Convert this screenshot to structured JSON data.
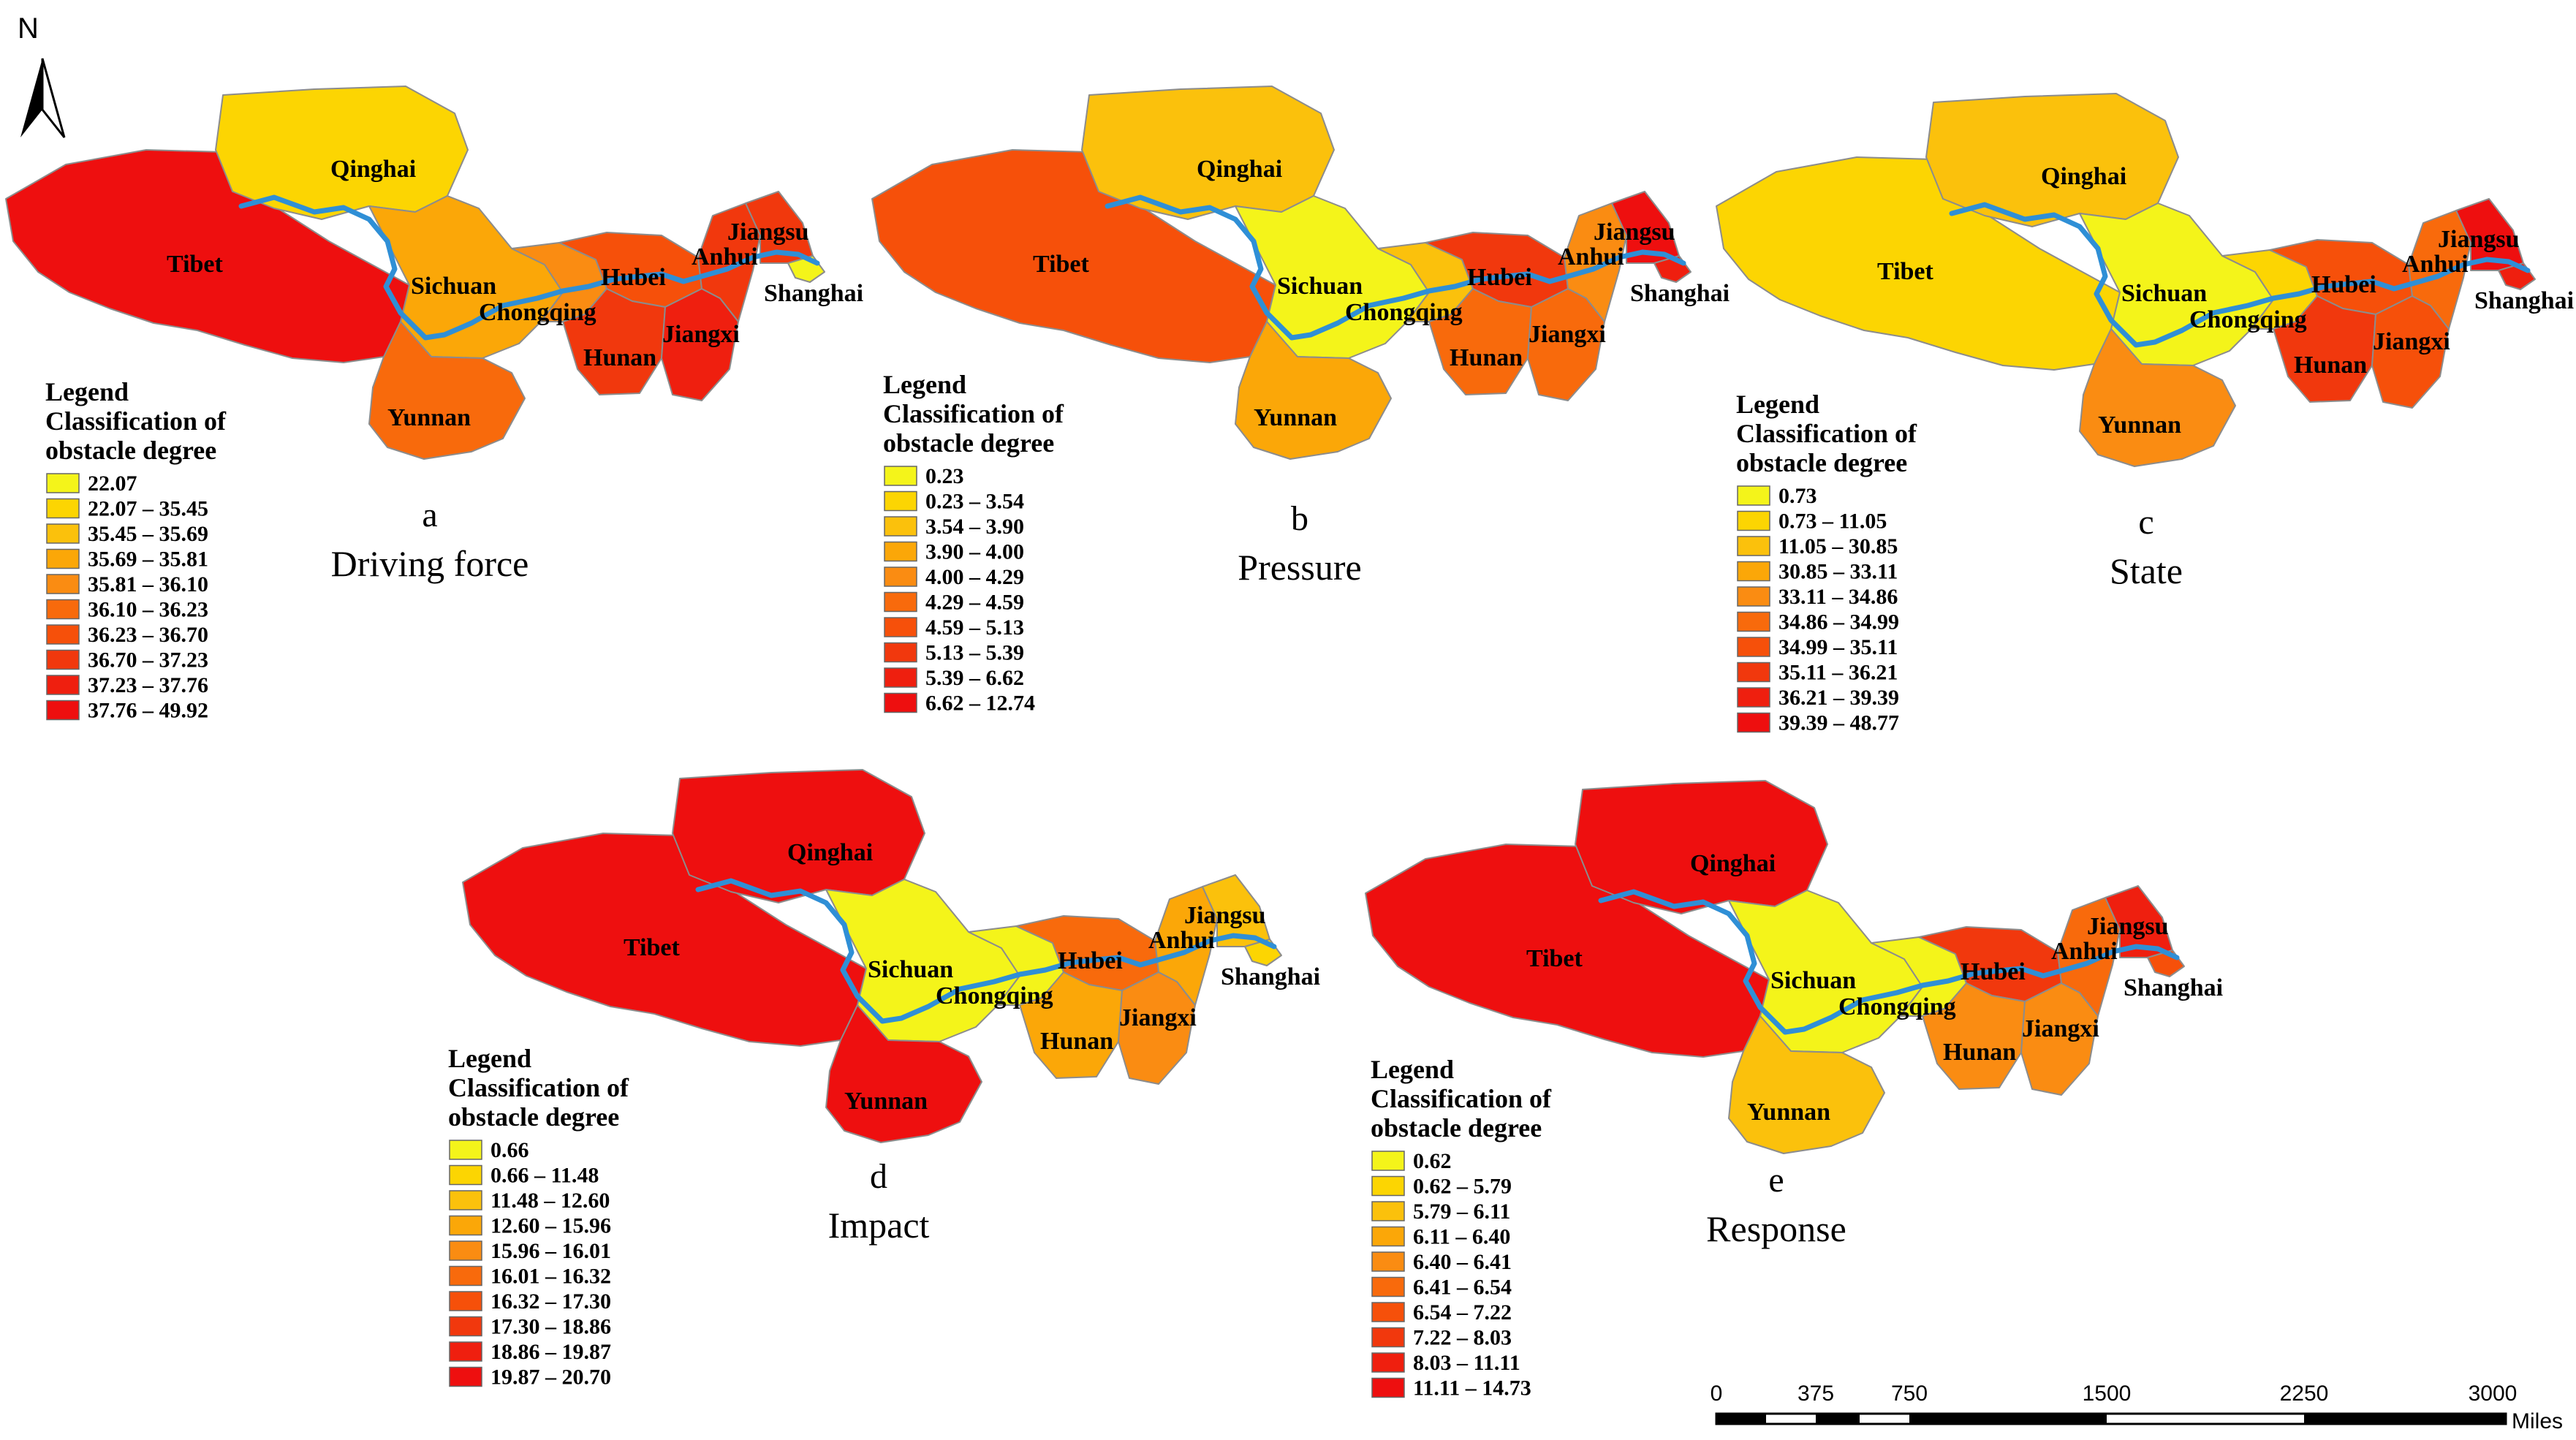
{
  "north_label": "N",
  "legend_title": "Legend",
  "legend_subtitle_1": "Classification of",
  "legend_subtitle_2": "obstacle degree",
  "provinces": [
    "Qinghai",
    "Tibet",
    "Sichuan",
    "Yunnan",
    "Chongqing",
    "Hubei",
    "Hunan",
    "Jiangxi",
    "Anhui",
    "Jiangsu",
    "Shanghai"
  ],
  "palette": [
    "#f4f41a",
    "#fcd502",
    "#fbc10c",
    "#fba708",
    "#fa8c12",
    "#f86a0c",
    "#f6500a",
    "#f1380d",
    "#ef1f0f",
    "#ee0f0f"
  ],
  "river_color": "#2f8fd6",
  "border_color": "#8c8c8c",
  "panels": [
    {
      "letter": "a",
      "name": "Driving force",
      "classes": [
        "22.07",
        "22.07 – 35.45",
        "35.45 – 35.69",
        "35.69 – 35.81",
        "35.81 – 36.10",
        "36.10 – 36.23",
        "36.23 – 36.70",
        "36.70 – 37.23",
        "37.23 – 37.76",
        "37.76 – 49.92"
      ],
      "province_class": {
        "Qinghai": 1,
        "Tibet": 9,
        "Sichuan": 3,
        "Yunnan": 5,
        "Chongqing": 4,
        "Hubei": 6,
        "Hunan": 7,
        "Jiangxi": 8,
        "Anhui": 7,
        "Jiangsu": 7,
        "Shanghai": 0
      }
    },
    {
      "letter": "b",
      "name": "Pressure",
      "classes": [
        "0.23",
        "0.23 – 3.54",
        "3.54 – 3.90",
        "3.90 – 4.00",
        "4.00 – 4.29",
        "4.29 – 4.59",
        "4.59 – 5.13",
        "5.13 – 5.39",
        "5.39 – 6.62",
        "6.62 – 12.74"
      ],
      "province_class": {
        "Qinghai": 2,
        "Tibet": 6,
        "Sichuan": 0,
        "Yunnan": 3,
        "Chongqing": 2,
        "Hubei": 7,
        "Hunan": 5,
        "Jiangxi": 5,
        "Anhui": 4,
        "Jiangsu": 9,
        "Shanghai": 8
      }
    },
    {
      "letter": "c",
      "name": "State",
      "classes": [
        "0.73",
        "0.73 – 11.05",
        "11.05 – 30.85",
        "30.85 – 33.11",
        "33.11 – 34.86",
        "34.86 – 34.99",
        "34.99 – 35.11",
        "35.11 – 36.21",
        "36.21 – 39.39",
        "39.39 – 48.77"
      ],
      "province_class": {
        "Qinghai": 2,
        "Tibet": 1,
        "Sichuan": 0,
        "Yunnan": 4,
        "Chongqing": 1,
        "Hubei": 6,
        "Hunan": 7,
        "Jiangxi": 6,
        "Anhui": 5,
        "Jiangsu": 9,
        "Shanghai": 8
      }
    },
    {
      "letter": "d",
      "name": "Impact",
      "classes": [
        "0.66",
        "0.66 – 11.48",
        "11.48 – 12.60",
        "12.60 – 15.96",
        "15.96 – 16.01",
        "16.01 – 16.32",
        "16.32 – 17.30",
        "17.30 – 18.86",
        "18.86 – 19.87",
        "19.87 – 20.70"
      ],
      "province_class": {
        "Qinghai": 9,
        "Tibet": 9,
        "Sichuan": 0,
        "Yunnan": 9,
        "Chongqing": 0,
        "Hubei": 5,
        "Hunan": 3,
        "Jiangxi": 4,
        "Anhui": 3,
        "Jiangsu": 2,
        "Shanghai": 1
      }
    },
    {
      "letter": "e",
      "name": "Response",
      "classes": [
        "0.62",
        "0.62 – 5.79",
        "5.79 – 6.11",
        "6.11 – 6.40",
        "6.40 – 6.41",
        "6.41 – 6.54",
        "6.54 – 7.22",
        "7.22 – 8.03",
        "8.03 – 11.11",
        "11.11 – 14.73"
      ],
      "province_class": {
        "Qinghai": 9,
        "Tibet": 9,
        "Sichuan": 0,
        "Yunnan": 2,
        "Chongqing": 0,
        "Hubei": 7,
        "Hunan": 4,
        "Jiangxi": 4,
        "Anhui": 5,
        "Jiangsu": 8,
        "Shanghai": 6
      }
    }
  ],
  "scale_bar": {
    "ticks": [
      "0",
      "375",
      "750",
      "1500",
      "2250",
      "3000"
    ],
    "unit": "Miles"
  }
}
